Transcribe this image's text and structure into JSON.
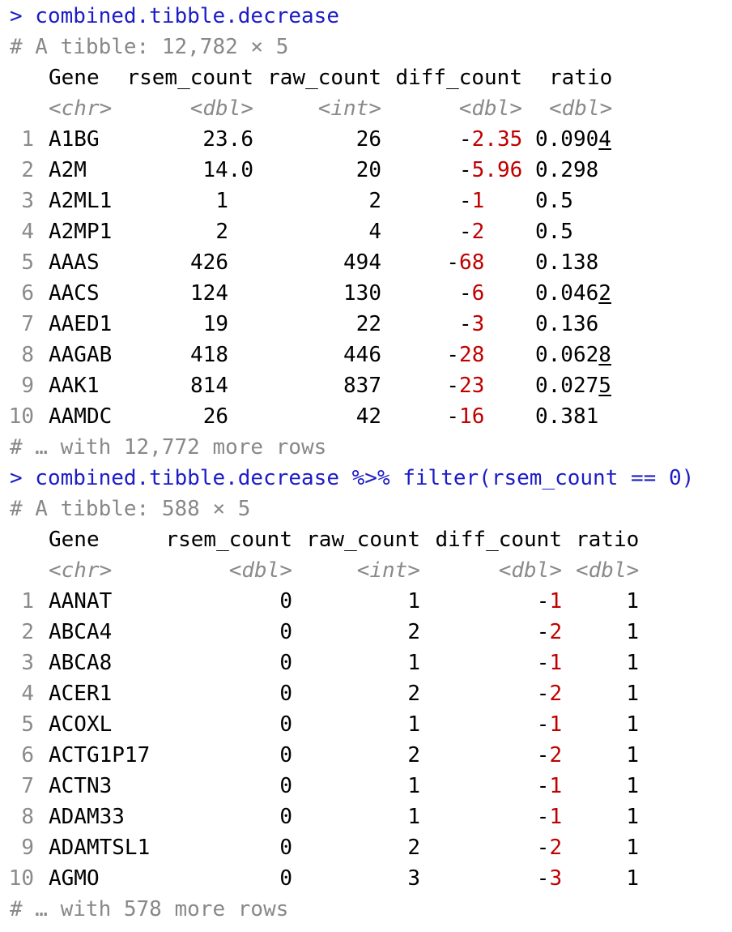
{
  "block1": {
    "command": "> combined.tibble.decrease",
    "summary": "# A tibble: 12,782 × 5",
    "headers": [
      "Gene",
      "rsem_count",
      "raw_count",
      "diff_count",
      "ratio"
    ],
    "types": [
      "<chr>",
      "<dbl>",
      "<int>",
      "<dbl>",
      "<dbl>"
    ],
    "rows": [
      {
        "n": "1",
        "gene": "A1BG",
        "rsem": "23.6",
        "raw": "26",
        "diff": "2.35",
        "ratio_a": "0.090",
        "ratio_b": "4"
      },
      {
        "n": "2",
        "gene": "A2M",
        "rsem": "14.0",
        "raw": "20",
        "diff": "5.96",
        "ratio_a": "0.298",
        "ratio_b": ""
      },
      {
        "n": "3",
        "gene": "A2ML1",
        "rsem": "1",
        "raw": "2",
        "diff": "1",
        "ratio_a": "0.5",
        "ratio_b": ""
      },
      {
        "n": "4",
        "gene": "A2MP1",
        "rsem": "2",
        "raw": "4",
        "diff": "2",
        "ratio_a": "0.5",
        "ratio_b": ""
      },
      {
        "n": "5",
        "gene": "AAAS",
        "rsem": "426",
        "raw": "494",
        "diff": "68",
        "ratio_a": "0.138",
        "ratio_b": ""
      },
      {
        "n": "6",
        "gene": "AACS",
        "rsem": "124",
        "raw": "130",
        "diff": "6",
        "ratio_a": "0.046",
        "ratio_b": "2"
      },
      {
        "n": "7",
        "gene": "AAED1",
        "rsem": "19",
        "raw": "22",
        "diff": "3",
        "ratio_a": "0.136",
        "ratio_b": ""
      },
      {
        "n": "8",
        "gene": "AAGAB",
        "rsem": "418",
        "raw": "446",
        "diff": "28",
        "ratio_a": "0.062",
        "ratio_b": "8"
      },
      {
        "n": "9",
        "gene": "AAK1",
        "rsem": "814",
        "raw": "837",
        "diff": "23",
        "ratio_a": "0.027",
        "ratio_b": "5"
      },
      {
        "n": "10",
        "gene": "AAMDC",
        "rsem": "26",
        "raw": "42",
        "diff": "16",
        "ratio_a": "0.381",
        "ratio_b": ""
      }
    ],
    "footer": "# … with 12,772 more rows"
  },
  "block2": {
    "command": "> combined.tibble.decrease %>% filter(rsem_count == 0)",
    "summary": "# A tibble: 588 × 5",
    "headers": [
      "Gene",
      "rsem_count",
      "raw_count",
      "diff_count",
      "ratio"
    ],
    "types": [
      "<chr>",
      "<dbl>",
      "<int>",
      "<dbl>",
      "<dbl>"
    ],
    "rows": [
      {
        "n": "1",
        "gene": "AANAT",
        "rsem": "0",
        "raw": "1",
        "diff": "1",
        "ratio": "1"
      },
      {
        "n": "2",
        "gene": "ABCA4",
        "rsem": "0",
        "raw": "2",
        "diff": "2",
        "ratio": "1"
      },
      {
        "n": "3",
        "gene": "ABCA8",
        "rsem": "0",
        "raw": "1",
        "diff": "1",
        "ratio": "1"
      },
      {
        "n": "4",
        "gene": "ACER1",
        "rsem": "0",
        "raw": "2",
        "diff": "2",
        "ratio": "1"
      },
      {
        "n": "5",
        "gene": "ACOXL",
        "rsem": "0",
        "raw": "1",
        "diff": "1",
        "ratio": "1"
      },
      {
        "n": "6",
        "gene": "ACTG1P17",
        "rsem": "0",
        "raw": "2",
        "diff": "2",
        "ratio": "1"
      },
      {
        "n": "7",
        "gene": "ACTN3",
        "rsem": "0",
        "raw": "1",
        "diff": "1",
        "ratio": "1"
      },
      {
        "n": "8",
        "gene": "ADAM33",
        "rsem": "0",
        "raw": "1",
        "diff": "1",
        "ratio": "1"
      },
      {
        "n": "9",
        "gene": "ADAMTSL1",
        "rsem": "0",
        "raw": "2",
        "diff": "2",
        "ratio": "1"
      },
      {
        "n": "10",
        "gene": "AGMO",
        "rsem": "0",
        "raw": "3",
        "diff": "3",
        "ratio": "1"
      }
    ],
    "footer": "# … with 578 more rows"
  },
  "colors": {
    "command": "#1c1cc8",
    "comment": "#888888",
    "negative": "#c00000",
    "type_label": "#8a8a8a"
  }
}
